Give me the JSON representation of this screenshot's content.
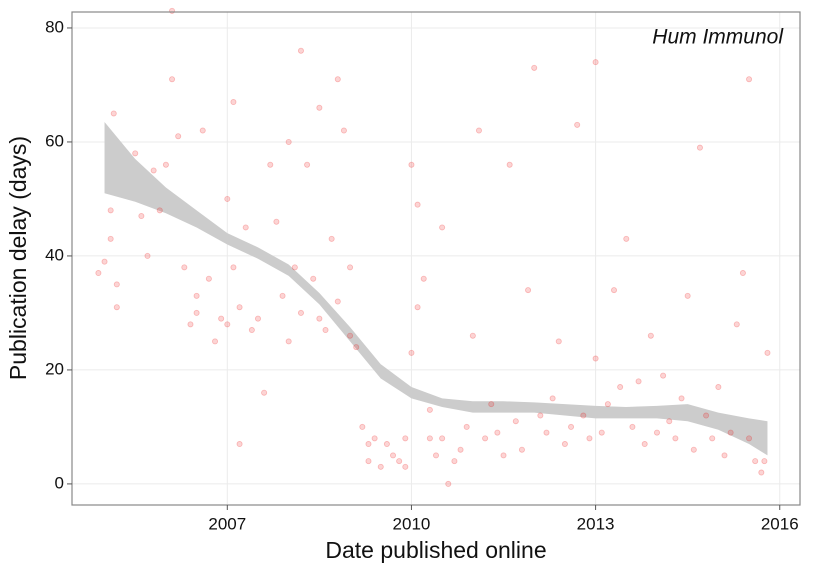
{
  "chart_data": {
    "type": "scatter",
    "annotation": "Hum Immunol",
    "xlabel": "Date published online",
    "ylabel": "Publication delay (days)",
    "xlim": [
      2004.47,
      2016.33
    ],
    "xticks": [
      2007,
      2010,
      2013,
      2016
    ],
    "ylim": [
      -3.7,
      82.8
    ],
    "yticks": [
      0,
      20,
      40,
      60,
      80
    ],
    "grid": true,
    "color": "#ee1111",
    "x": [
      2004.9,
      2005.0,
      2005.1,
      2005.15,
      2005.1,
      2005.2,
      2005.2,
      2005.5,
      2005.6,
      2005.7,
      2005.8,
      2005.9,
      2006.0,
      2006.1,
      2006.1,
      2006.2,
      2006.3,
      2006.4,
      2006.5,
      2006.5,
      2006.6,
      2006.7,
      2006.8,
      2006.9,
      2007.0,
      2007.0,
      2007.1,
      2007.1,
      2007.2,
      2007.2,
      2007.3,
      2007.4,
      2007.5,
      2007.6,
      2007.7,
      2007.8,
      2007.9,
      2008.0,
      2008.0,
      2008.1,
      2008.2,
      2008.2,
      2008.3,
      2008.4,
      2008.5,
      2008.5,
      2008.6,
      2008.7,
      2008.8,
      2008.8,
      2008.9,
      2009.0,
      2009.0,
      2009.1,
      2009.2,
      2009.3,
      2009.3,
      2009.4,
      2009.5,
      2009.6,
      2009.7,
      2009.8,
      2009.9,
      2009.9,
      2010.0,
      2010.0,
      2010.1,
      2010.1,
      2010.2,
      2010.3,
      2010.3,
      2010.4,
      2010.5,
      2010.5,
      2010.6,
      2010.7,
      2010.8,
      2010.9,
      2011.0,
      2011.1,
      2011.2,
      2011.3,
      2011.4,
      2011.5,
      2011.6,
      2011.7,
      2011.8,
      2011.9,
      2012.0,
      2012.1,
      2012.2,
      2012.3,
      2012.4,
      2012.5,
      2012.6,
      2012.7,
      2012.8,
      2012.9,
      2013.0,
      2013.0,
      2013.1,
      2013.2,
      2013.3,
      2013.4,
      2013.5,
      2013.6,
      2013.7,
      2013.8,
      2013.9,
      2014.0,
      2014.1,
      2014.2,
      2014.3,
      2014.4,
      2014.5,
      2014.6,
      2014.7,
      2014.8,
      2014.9,
      2015.0,
      2015.1,
      2015.2,
      2015.3,
      2015.4,
      2015.5,
      2015.5,
      2015.6,
      2015.7,
      2015.75,
      2015.8
    ],
    "values": [
      37,
      39,
      43,
      65,
      48,
      35,
      31,
      58,
      47,
      40,
      55,
      48,
      56,
      83,
      71,
      61,
      38,
      28,
      33,
      30,
      62,
      36,
      25,
      29,
      28,
      50,
      67,
      38,
      7,
      31,
      45,
      27,
      29,
      16,
      56,
      46,
      33,
      60,
      25,
      38,
      76,
      30,
      56,
      36,
      66,
      29,
      27,
      43,
      71,
      32,
      62,
      38,
      26,
      24,
      10,
      7,
      4,
      8,
      3,
      7,
      5,
      4,
      8,
      3,
      56,
      23,
      31,
      49,
      36,
      8,
      13,
      5,
      45,
      8,
      0,
      4,
      6,
      10,
      26,
      62,
      8,
      14,
      9,
      5,
      56,
      11,
      6,
      34,
      73,
      12,
      9,
      15,
      25,
      7,
      10,
      63,
      12,
      8,
      74,
      22,
      9,
      14,
      34,
      17,
      43,
      10,
      18,
      7,
      26,
      9,
      19,
      11,
      8,
      15,
      33,
      6,
      59,
      12,
      8,
      17,
      5,
      9,
      28,
      37,
      71,
      8,
      4,
      2,
      4,
      23
    ],
    "band": {
      "color": "#cccccc",
      "x": [
        2005.0,
        2005.5,
        2006.0,
        2006.5,
        2007.0,
        2007.5,
        2008.0,
        2008.5,
        2009.0,
        2009.5,
        2010.0,
        2010.5,
        2011.0,
        2011.5,
        2012.0,
        2012.5,
        2013.0,
        2013.5,
        2014.0,
        2014.5,
        2015.0,
        2015.5,
        2015.8
      ],
      "lower": [
        51,
        49.5,
        47.5,
        45,
        42,
        39.5,
        36.5,
        31.5,
        25,
        18.5,
        15,
        13.5,
        12.5,
        12.5,
        12.5,
        12,
        11.5,
        11.5,
        11.5,
        11,
        9.5,
        7,
        5
      ],
      "upper": [
        63.5,
        57,
        52,
        48,
        44,
        41.5,
        38.5,
        33.5,
        27.5,
        21,
        17,
        15,
        14.5,
        14.5,
        14.3,
        14,
        13.7,
        13.5,
        13.7,
        14,
        12.5,
        11.5,
        11
      ]
    }
  }
}
